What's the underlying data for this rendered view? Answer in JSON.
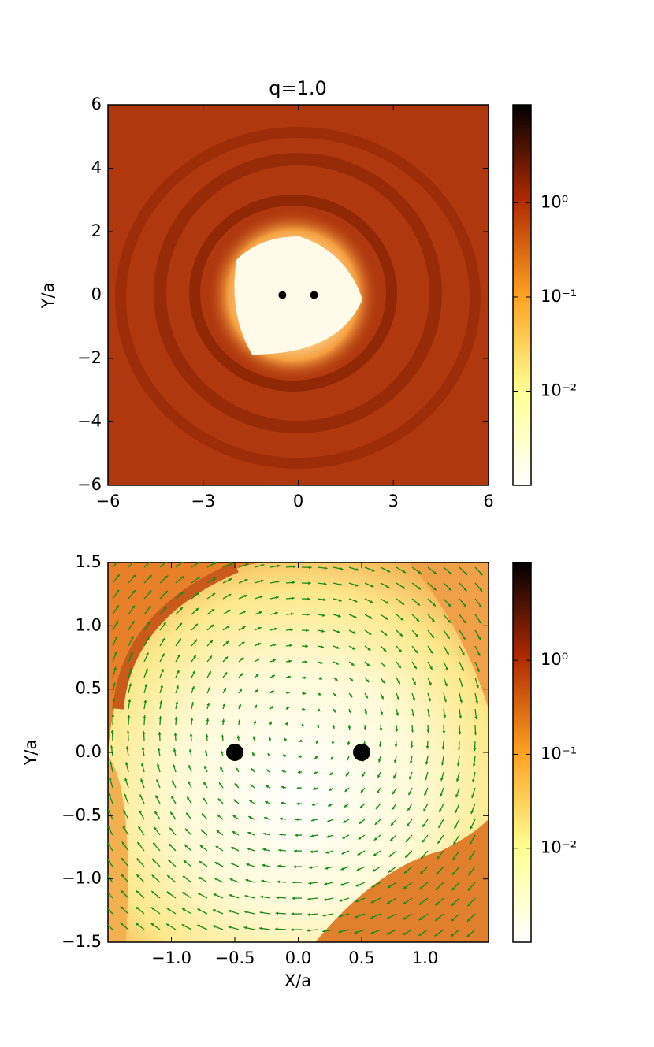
{
  "chart_data": [
    {
      "type": "scatter",
      "title": "q=1.0",
      "y_label": "Y/a",
      "x": [
        -0.5,
        0.5
      ],
      "values": [
        0,
        0
      ],
      "color": "#000000",
      "xlim": [
        -6,
        6
      ],
      "ylim": [
        -6,
        6
      ],
      "xticks": [
        {
          "value": -6,
          "label": "−6"
        },
        {
          "value": -3,
          "label": "−3"
        },
        0,
        3,
        6
      ],
      "yticks": [
        {
          "value": -6,
          "label": "−6"
        },
        {
          "value": -4,
          "label": "−4"
        },
        {
          "value": -2,
          "label": "−2"
        },
        0,
        2,
        4,
        6
      ],
      "grid": false,
      "colorbar": {
        "scale": "log",
        "lim": [
          0.001,
          11
        ],
        "ticks": [
          {
            "value": 1,
            "label": "10⁰"
          },
          {
            "value": 0.1,
            "label": "10⁻¹"
          },
          {
            "value": 0.01,
            "label": "10⁻²"
          }
        ]
      }
    },
    {
      "type": "scatter",
      "x_label": "X/a",
      "y_label": "Y/a",
      "x": [
        -0.5,
        0.5
      ],
      "values": [
        0,
        0
      ],
      "color": "#000000",
      "xlim": [
        -1.5,
        1.5
      ],
      "ylim": [
        -1.5,
        1.5
      ],
      "xticks": [
        {
          "value": -1,
          "label": "−1.0"
        },
        {
          "value": -0.5,
          "label": "−0.5"
        },
        {
          "value": 0,
          "label": "0.0"
        },
        {
          "value": 0.5,
          "label": "0.5"
        },
        {
          "value": 1,
          "label": "1.0"
        }
      ],
      "yticks": [
        {
          "value": -1.5,
          "label": "−1.5"
        },
        {
          "value": -1,
          "label": "−1.0"
        },
        {
          "value": -0.5,
          "label": "−0.5"
        },
        {
          "value": 0,
          "label": "0.0"
        },
        {
          "value": 0.5,
          "label": "0.5"
        },
        {
          "value": 1,
          "label": "1.0"
        },
        {
          "value": 1.5,
          "label": "1.5"
        }
      ],
      "grid": false,
      "colorbar": {
        "scale": "log",
        "lim": [
          0.001,
          11
        ],
        "ticks": [
          {
            "value": 1,
            "label": "10⁰"
          },
          {
            "value": 0.1,
            "label": "10⁻¹"
          },
          {
            "value": 0.01,
            "label": "10⁻²"
          }
        ]
      }
    }
  ]
}
